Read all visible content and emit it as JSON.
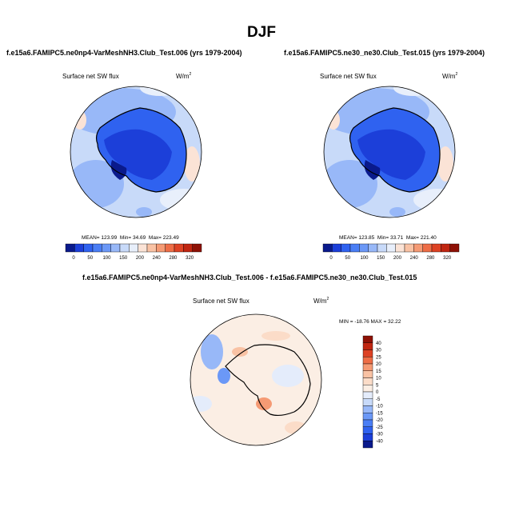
{
  "season": "DJF",
  "panels": [
    {
      "case": "f.e15a6.FAMIPC5.ne0np4-VarMeshNH3.Club_Test.006 (yrs 1979-2004)",
      "variable": "Surface net SW flux",
      "units": "W/m",
      "units_exp": "2",
      "mean_label": "MEAN=",
      "mean": "123.99",
      "min_label": "Min=",
      "min": "34.69",
      "max_label": "Max=",
      "max": "223.49"
    },
    {
      "case": "f.e15a6.FAMIPC5.ne30_ne30.Club_Test.015 (yrs 1979-2004)",
      "variable": "Surface net SW flux",
      "units": "W/m",
      "units_exp": "2",
      "mean_label": "MEAN=",
      "mean": "123.85",
      "min_label": "Min=",
      "min": "33.71",
      "max_label": "Max=",
      "max": "221.40"
    }
  ],
  "difference": {
    "title": "f.e15a6.FAMIPC5.ne0np4-VarMeshNH3.Club_Test.006 - f.e15a6.FAMIPC5.ne30_ne30.Club_Test.015",
    "variable": "Surface net SW flux",
    "units": "W/m",
    "units_exp": "2",
    "minmax": "MIN = -18.76  MAX =  32.22"
  },
  "chart_data": [
    {
      "type": "heatmap",
      "projection": "polar-stereographic-south",
      "title": "f.e15a6.FAMIPC5.ne0np4-VarMeshNH3.Club_Test.006 (yrs 1979-2004)",
      "variable": "Surface net SW flux",
      "units": "W/m2",
      "stats": {
        "mean": 123.99,
        "min": 34.69,
        "max": 223.49
      },
      "colorbar": {
        "orientation": "horizontal",
        "levels": [
          0,
          50,
          100,
          150,
          200,
          240,
          280,
          320
        ],
        "colors": [
          "#0a1a8c",
          "#1c3fd9",
          "#2f62f0",
          "#4a7ef5",
          "#6b98f7",
          "#98b8f8",
          "#c8daf9",
          "#e8effb",
          "#fbe3d6",
          "#f9c2a4",
          "#f59a74",
          "#ee6d46",
          "#dd4224",
          "#c02611",
          "#8e1106"
        ]
      }
    },
    {
      "type": "heatmap",
      "projection": "polar-stereographic-south",
      "title": "f.e15a6.FAMIPC5.ne30_ne30.Club_Test.015 (yrs 1979-2004)",
      "variable": "Surface net SW flux",
      "units": "W/m2",
      "stats": {
        "mean": 123.85,
        "min": 33.71,
        "max": 221.4
      },
      "colorbar": {
        "orientation": "horizontal",
        "levels": [
          0,
          50,
          100,
          150,
          200,
          240,
          280,
          320
        ],
        "colors": [
          "#0a1a8c",
          "#1c3fd9",
          "#2f62f0",
          "#4a7ef5",
          "#6b98f7",
          "#98b8f8",
          "#c8daf9",
          "#e8effb",
          "#fbe3d6",
          "#f9c2a4",
          "#f59a74",
          "#ee6d46",
          "#dd4224",
          "#c02611",
          "#8e1106"
        ]
      }
    },
    {
      "type": "heatmap",
      "projection": "polar-stereographic-south",
      "title": "f.e15a6.FAMIPC5.ne0np4-VarMeshNH3.Club_Test.006 - f.e15a6.FAMIPC5.ne30_ne30.Club_Test.015",
      "variable": "Surface net SW flux",
      "units": "W/m2",
      "stats": {
        "min": -18.76,
        "max": 32.22
      },
      "colorbar": {
        "orientation": "vertical",
        "levels": [
          40,
          30,
          25,
          20,
          15,
          10,
          5,
          0,
          -5,
          -10,
          -15,
          -20,
          -25,
          -30,
          -40
        ],
        "colors": [
          "#8e1106",
          "#c02611",
          "#dd4224",
          "#ee6d46",
          "#f59a74",
          "#f9c2a4",
          "#fbdcc8",
          "#fbeee4",
          "#e4ecfb",
          "#c8daf9",
          "#98b8f8",
          "#6b98f7",
          "#4a7ef5",
          "#2f62f0",
          "#1c3fd9",
          "#0a1a8c"
        ]
      }
    }
  ]
}
